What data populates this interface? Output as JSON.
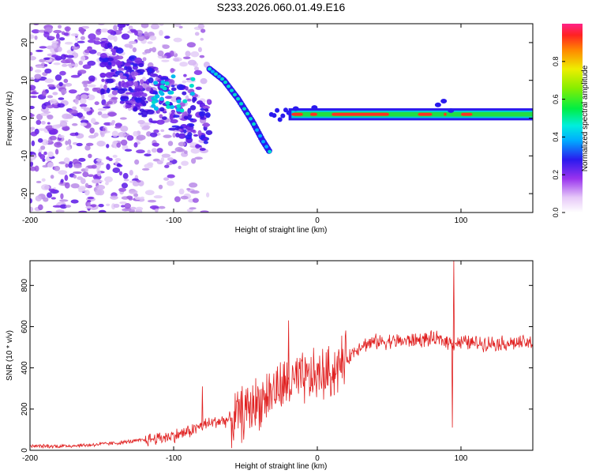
{
  "figure_title": "S233.2026.060.01.49.E16",
  "colors": {
    "snr_line": "#e02020",
    "axes": "#000000",
    "background": "#ffffff"
  },
  "colorbar": {
    "label": "Normalized spectral amplitude",
    "ticks": [
      "0.0",
      "0.2",
      "0.4",
      "0.6",
      "0.8"
    ],
    "tick_values": [
      0.0,
      0.2,
      0.4,
      0.6,
      0.8
    ],
    "range": [
      0.0,
      1.0
    ]
  },
  "chart_data": [
    {
      "type": "heatmap",
      "title": "",
      "xlabel": "Height of straight line (km)",
      "ylabel": "Frequency (Hz)",
      "xlim": [
        -200,
        150
      ],
      "ylim": [
        -25,
        25
      ],
      "x_ticks": [
        -200,
        -100,
        0,
        100
      ],
      "x_tick_labels": [
        "-200",
        "-100",
        "0",
        "100"
      ],
      "y_ticks": [
        -20,
        -10,
        0,
        10,
        20
      ],
      "y_tick_labels": [
        "-20",
        "-10",
        "0",
        "10",
        "20"
      ],
      "description_points": {
        "strong_band_frequency_hz": 1,
        "strong_band_start_km": -20,
        "strong_band_end_km": 150,
        "converging_track": [
          [
            -75,
            13
          ],
          [
            -65,
            10
          ],
          [
            -55,
            5
          ],
          [
            -45,
            -1
          ],
          [
            -38,
            -6
          ],
          [
            -33,
            -9
          ]
        ],
        "noise_region_km": [
          -200,
          -95
        ]
      }
    },
    {
      "type": "line",
      "title": "",
      "xlabel": "Height of straight line (km)",
      "ylabel": "SNR (10 * v/v)",
      "xlim": [
        -200,
        150
      ],
      "ylim": [
        0,
        920
      ],
      "x_ticks": [
        -200,
        -100,
        0,
        100
      ],
      "x_tick_labels": [
        "-200",
        "-100",
        "0",
        "100"
      ],
      "y_ticks": [
        0,
        200,
        400,
        600,
        800
      ],
      "y_tick_labels": [
        "0",
        "200",
        "400",
        "600",
        "800"
      ],
      "series": [
        {
          "name": "SNR",
          "x": [
            -200,
            -180,
            -160,
            -140,
            -120,
            -110,
            -100,
            -90,
            -80,
            -70,
            -60,
            -50,
            -40,
            -30,
            -20,
            -10,
            0,
            10,
            20,
            30,
            40,
            50,
            60,
            70,
            80,
            90,
            95,
            100,
            110,
            120,
            130,
            140,
            150
          ],
          "y": [
            20,
            20,
            25,
            35,
            50,
            60,
            70,
            90,
            120,
            140,
            150,
            190,
            240,
            290,
            320,
            340,
            360,
            380,
            440,
            510,
            525,
            530,
            530,
            535,
            540,
            530,
            520,
            525,
            520,
            520,
            520,
            520,
            520
          ]
        }
      ],
      "spikes": [
        {
          "x": -80,
          "y": 310
        },
        {
          "x": -20,
          "y": 630
        },
        {
          "x": 95,
          "y": 920
        },
        {
          "x": 94,
          "y": 110
        }
      ]
    }
  ]
}
